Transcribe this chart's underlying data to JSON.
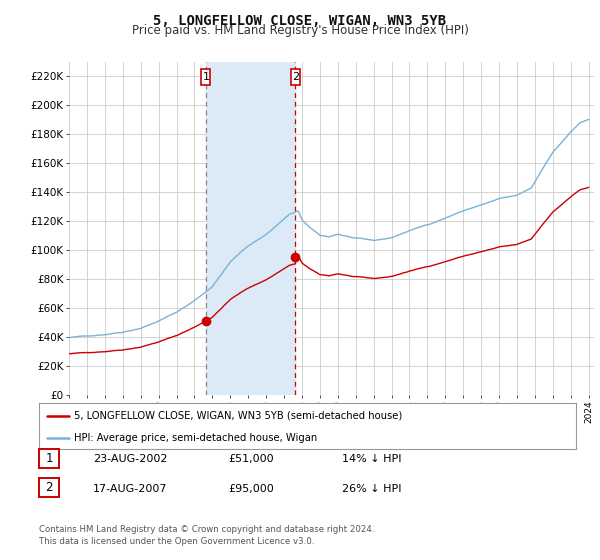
{
  "title": "5, LONGFELLOW CLOSE, WIGAN, WN3 5YB",
  "subtitle": "Price paid vs. HM Land Registry's House Price Index (HPI)",
  "ylim": [
    0,
    230000
  ],
  "yticks": [
    0,
    20000,
    40000,
    60000,
    80000,
    100000,
    120000,
    140000,
    160000,
    180000,
    200000,
    220000
  ],
  "ytick_labels": [
    "£0",
    "£20K",
    "£40K",
    "£60K",
    "£80K",
    "£100K",
    "£120K",
    "£140K",
    "£160K",
    "£180K",
    "£200K",
    "£220K"
  ],
  "background_color": "#ffffff",
  "grid_color": "#cccccc",
  "hpi_color": "#7ab3d8",
  "price_color": "#cc0000",
  "shade_color": "#dce9f7",
  "transaction1_date": 2002.64,
  "transaction1_price": 51000,
  "transaction2_date": 2007.63,
  "transaction2_price": 95000,
  "legend_line1": "5, LONGFELLOW CLOSE, WIGAN, WN3 5YB (semi-detached house)",
  "legend_line2": "HPI: Average price, semi-detached house, Wigan",
  "table_row1": [
    "1",
    "23-AUG-2002",
    "£51,000",
    "14% ↓ HPI"
  ],
  "table_row2": [
    "2",
    "17-AUG-2007",
    "£95,000",
    "26% ↓ HPI"
  ],
  "footer": "Contains HM Land Registry data © Crown copyright and database right 2024.\nThis data is licensed under the Open Government Licence v3.0.",
  "title_fontsize": 10,
  "subtitle_fontsize": 8.5,
  "tick_fontsize": 7.5
}
